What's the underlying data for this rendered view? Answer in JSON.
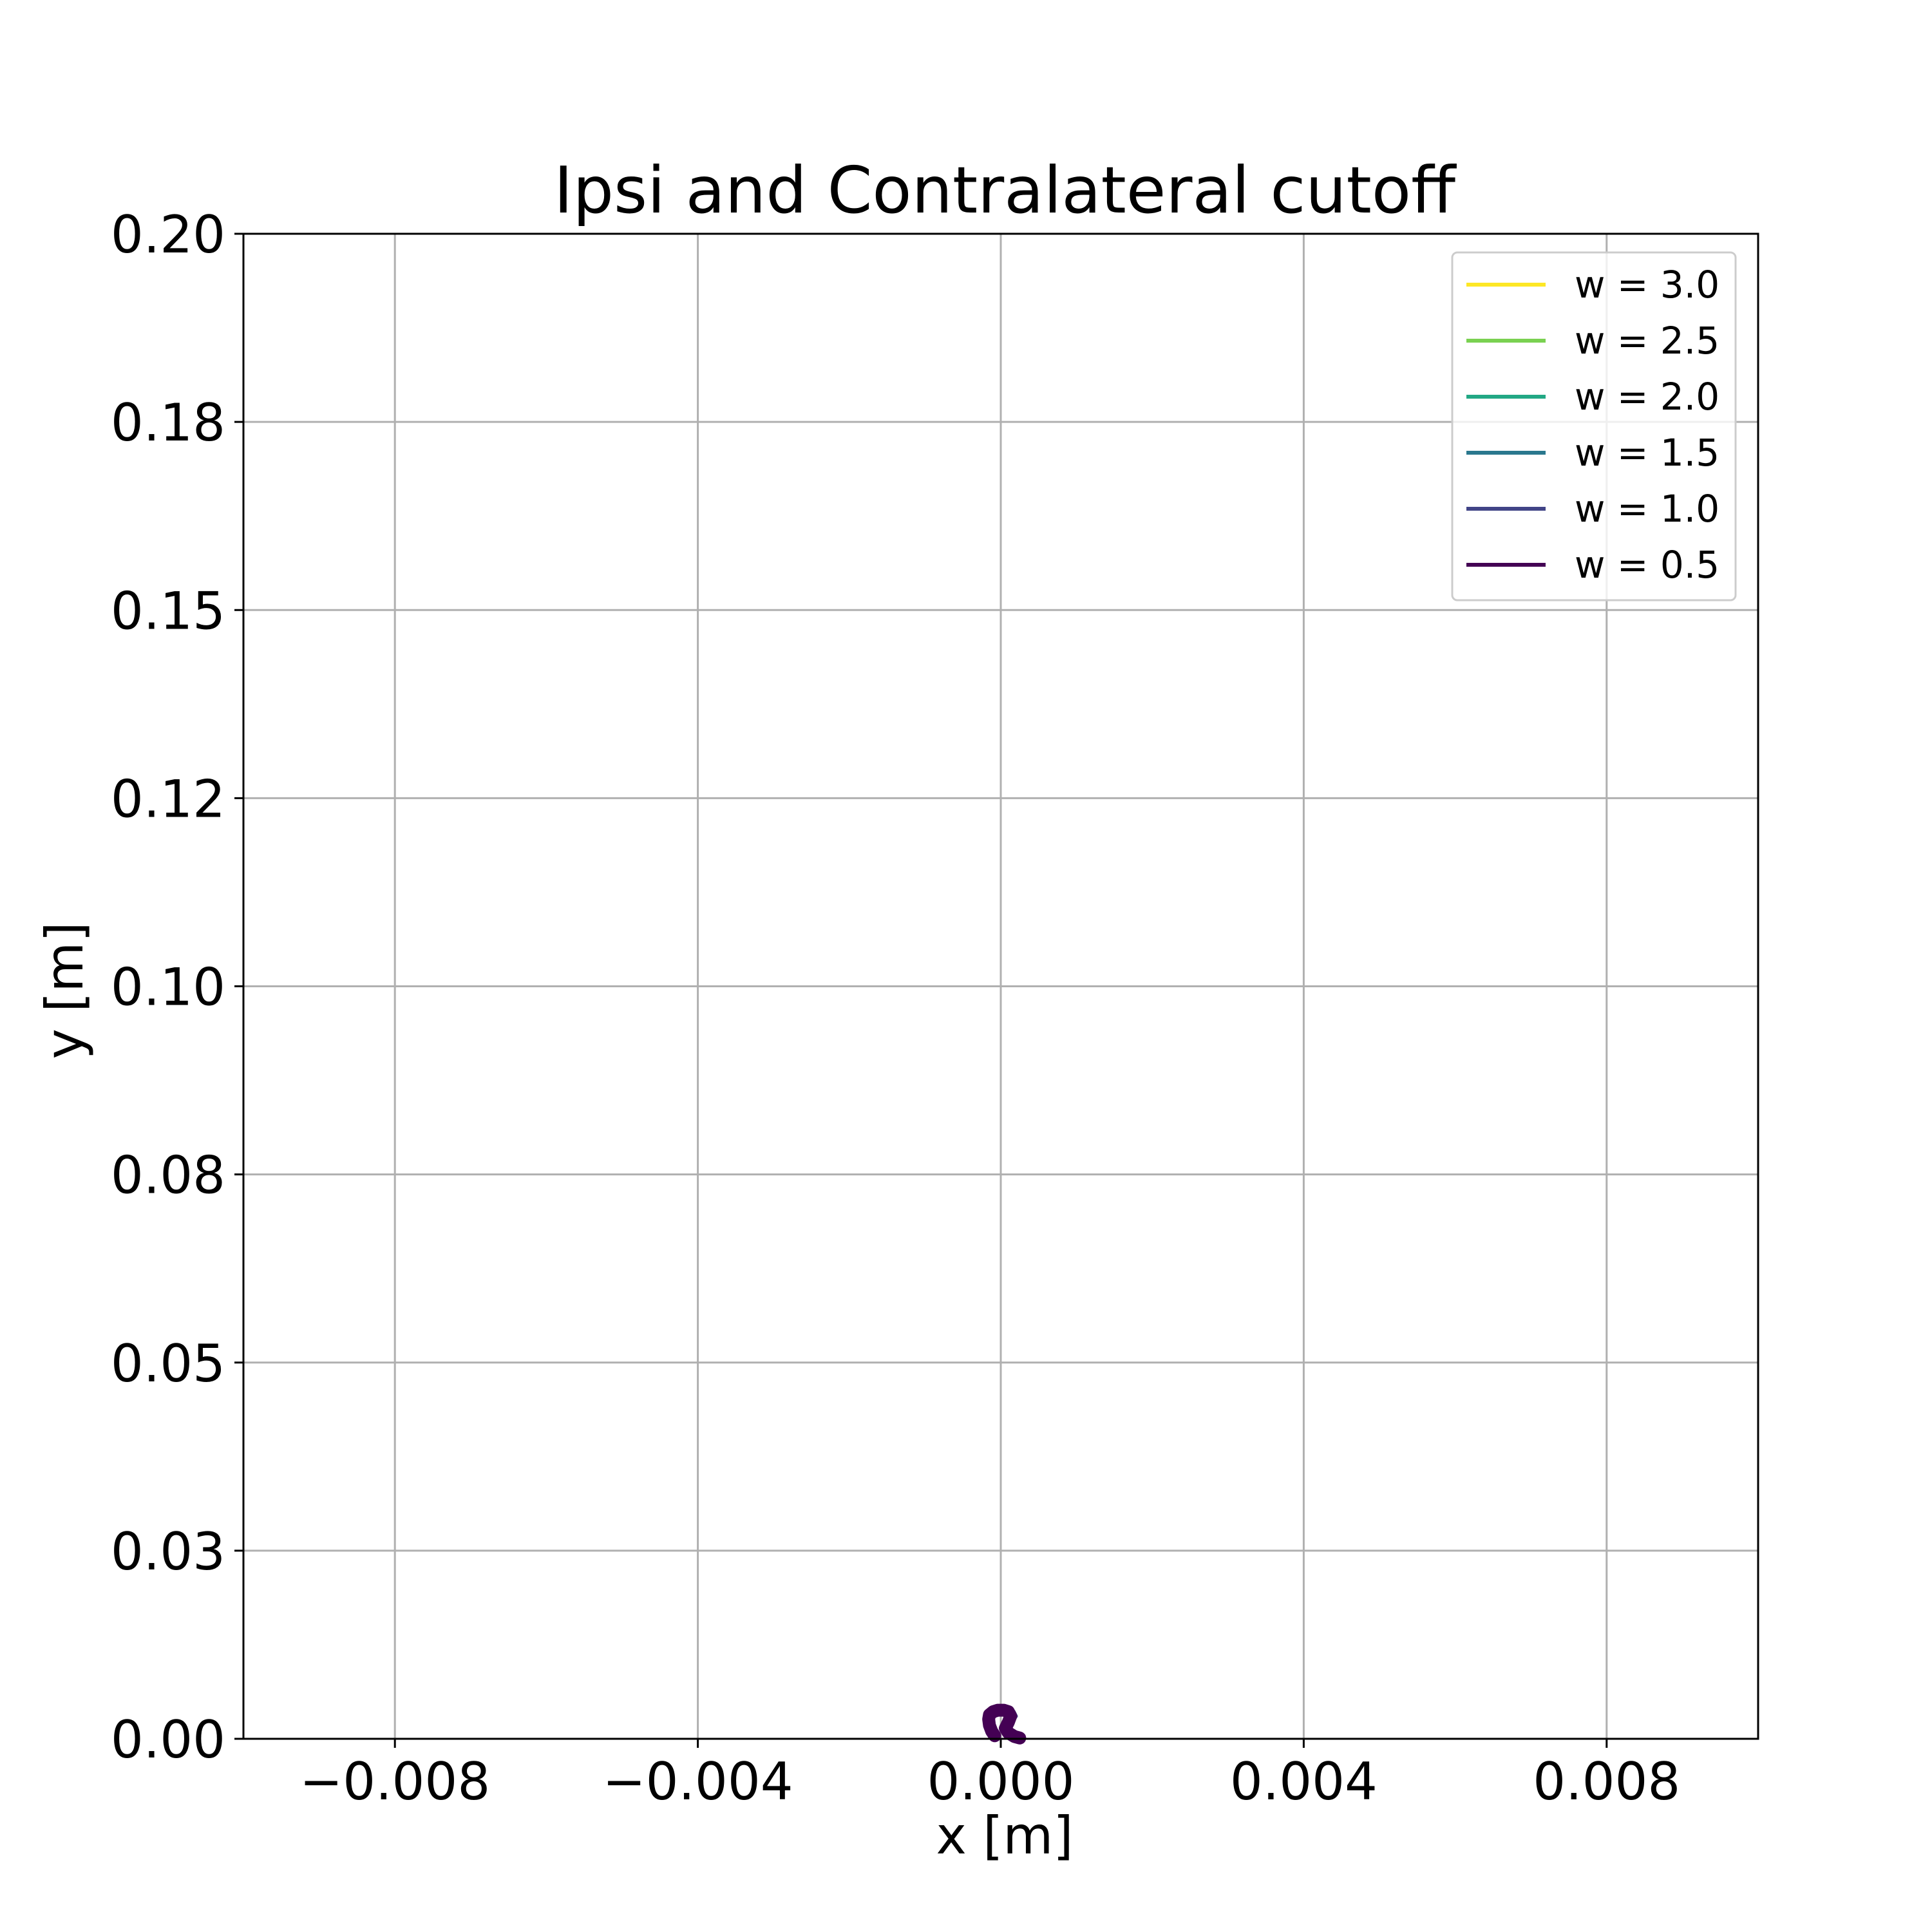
{
  "chart_data": {
    "type": "line",
    "title": "Ipsi and Contralateral cutoff",
    "xlabel": "x [m]",
    "ylabel": "y [m]",
    "xlim": [
      -0.01,
      0.01
    ],
    "ylim": [
      0.0,
      0.2
    ],
    "x_ticks": [
      {
        "value": -0.008,
        "label": "−0.008"
      },
      {
        "value": -0.004,
        "label": "−0.004"
      },
      {
        "value": 0.0,
        "label": "0.000"
      },
      {
        "value": 0.004,
        "label": "0.004"
      },
      {
        "value": 0.008,
        "label": "0.008"
      }
    ],
    "y_ticks": [
      {
        "value": 0.0,
        "label": "0.00"
      },
      {
        "value": 0.025,
        "label": "0.03"
      },
      {
        "value": 0.05,
        "label": "0.05"
      },
      {
        "value": 0.075,
        "label": "0.08"
      },
      {
        "value": 0.1,
        "label": "0.10"
      },
      {
        "value": 0.125,
        "label": "0.12"
      },
      {
        "value": 0.15,
        "label": "0.15"
      },
      {
        "value": 0.175,
        "label": "0.18"
      },
      {
        "value": 0.2,
        "label": "0.20"
      }
    ],
    "grid": true,
    "legend_position": "top-right",
    "series": [
      {
        "name": "w = 3.0",
        "color": "#fde725",
        "x": [],
        "y": []
      },
      {
        "name": "w = 2.5",
        "color": "#7ad151",
        "x": [],
        "y": []
      },
      {
        "name": "w = 2.0",
        "color": "#22a884",
        "x": [],
        "y": []
      },
      {
        "name": "w = 1.5",
        "color": "#2a788e",
        "x": [],
        "y": []
      },
      {
        "name": "w = 1.0",
        "color": "#414487",
        "x": [
          8e-05,
          0.00011,
          0.00013,
          0.00016,
          0.0002,
          0.00017
        ],
        "y": [
          0.0005,
          0.0012,
          0.0018,
          0.0024,
          0.003,
          0.0036
        ]
      },
      {
        "name": "w = 0.5",
        "color": "#440154",
        "x": [
          -8e-05,
          -0.00012,
          -0.00015,
          -0.00016,
          -0.00015,
          -0.0001,
          -4e-05,
          4e-05,
          0.0001,
          0.00013,
          0.0001,
          6e-05,
          0.0001,
          0.00018,
          0.00025
        ],
        "y": [
          0.0004,
          0.001,
          0.0018,
          0.0026,
          0.0032,
          0.0036,
          0.0038,
          0.0038,
          0.0036,
          0.003,
          0.0022,
          0.0014,
          0.0008,
          0.0003,
          0.0001
        ]
      }
    ]
  }
}
